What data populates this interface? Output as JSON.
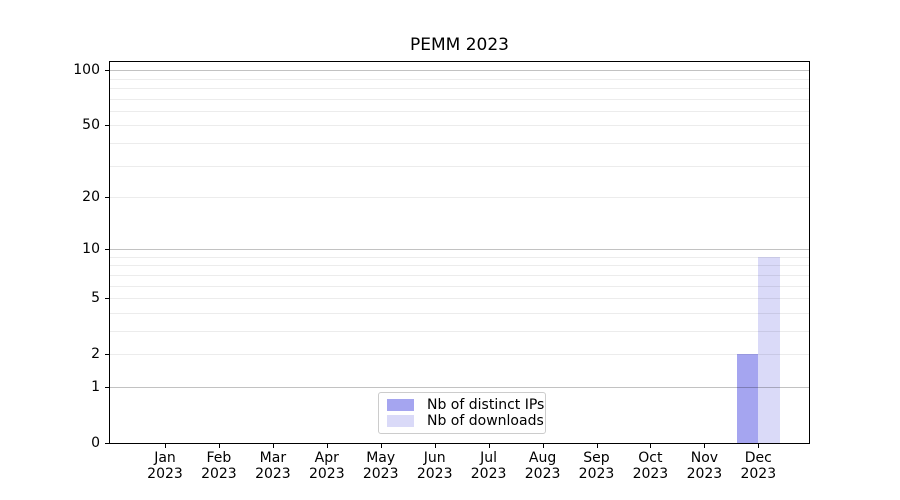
{
  "chart_data": {
    "type": "bar",
    "title": "PEMM 2023",
    "categories": [
      "Jan",
      "Feb",
      "Mar",
      "Apr",
      "May",
      "Jun",
      "Jul",
      "Aug",
      "Sep",
      "Oct",
      "Nov",
      "Dec"
    ],
    "year_label": "2023",
    "series": [
      {
        "name": "Nb of distinct IPs",
        "color": "#a5a5f0",
        "values": [
          0,
          0,
          0,
          0,
          0,
          0,
          0,
          0,
          0,
          0,
          0,
          2
        ]
      },
      {
        "name": "Nb of downloads",
        "color": "#dadaf8",
        "values": [
          0,
          0,
          0,
          0,
          0,
          0,
          0,
          0,
          0,
          0,
          0,
          9
        ]
      }
    ],
    "yticks": [
      0,
      1,
      2,
      5,
      10,
      20,
      50,
      100
    ],
    "yscale": "log10(value+1)",
    "ylim": [
      0,
      111
    ],
    "grid": {
      "major_values": [
        1,
        10,
        100
      ],
      "minor_values": [
        2,
        3,
        4,
        5,
        6,
        7,
        8,
        9,
        20,
        30,
        40,
        50,
        60,
        70,
        80,
        90
      ]
    },
    "legend": {
      "position": "lower center"
    }
  }
}
